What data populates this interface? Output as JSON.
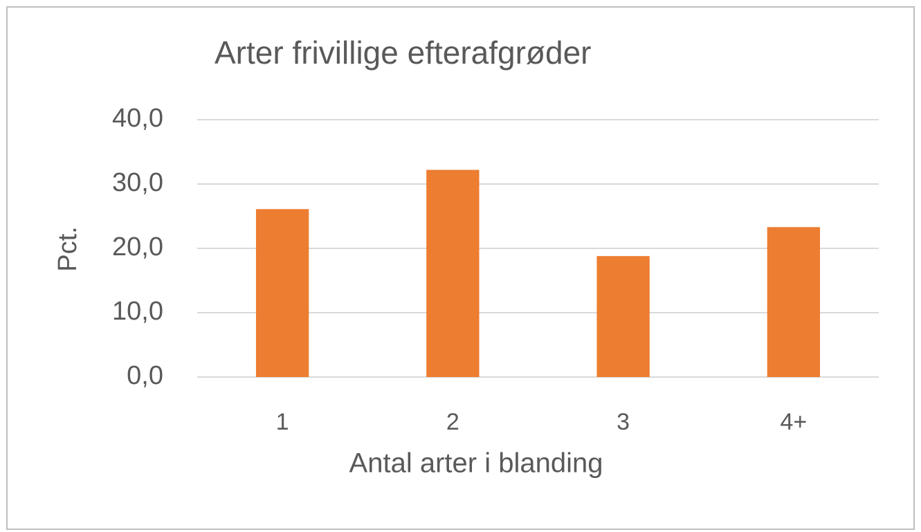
{
  "chart_data": {
    "type": "bar",
    "title": "Arter frivillige efterafgrøder",
    "x_label": "Antal arter i blanding",
    "y_label": "Pct.",
    "categories": [
      "1",
      "2",
      "3",
      "4+"
    ],
    "values": [
      26.1,
      32.2,
      18.8,
      23.3
    ],
    "color": "#ed7d31",
    "ylim": [
      0,
      40
    ],
    "yticks": [
      {
        "value": 0,
        "label": "0,0"
      },
      {
        "value": 10,
        "label": "10,0"
      },
      {
        "value": 20,
        "label": "20,0"
      },
      {
        "value": 30,
        "label": "30,0"
      },
      {
        "value": 40,
        "label": "40,0"
      }
    ],
    "grid": true
  }
}
